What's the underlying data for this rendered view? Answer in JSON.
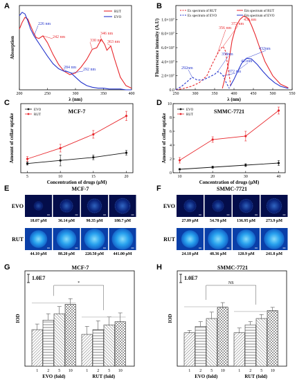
{
  "panels": {
    "A": {
      "letter": "A",
      "chart_data": {
        "type": "line",
        "xlabel": "λ (nm)",
        "ylabel": "Absorption",
        "xlim": [
          200,
          400
        ],
        "xticks": [
          200,
          250,
          300,
          350,
          400
        ],
        "ylim": [
          0,
          1
        ],
        "legend_position": "top-right",
        "series": [
          {
            "name": "RUT",
            "color": "#e8262b",
            "x": [
              200,
              205,
              210,
              215,
              220,
              225,
              230,
              235,
              242,
              250,
              260,
              270,
              280,
              290,
              300,
              310,
              320,
              330,
              338,
              346,
              352,
              356,
              363,
              370,
              380,
              390,
              400
            ],
            "y": [
              0.72,
              0.8,
              0.86,
              0.84,
              0.76,
              0.68,
              0.62,
              0.61,
              0.64,
              0.56,
              0.42,
              0.3,
              0.22,
              0.18,
              0.2,
              0.27,
              0.36,
              0.48,
              0.5,
              0.6,
              0.54,
              0.47,
              0.52,
              0.36,
              0.15,
              0.05,
              0.02
            ]
          },
          {
            "name": "EVO",
            "color": "#2233cc",
            "x": [
              200,
              205,
              210,
              215,
              220,
              226,
              232,
              240,
              250,
              260,
              270,
              280,
              284,
              288,
              292,
              300,
              310,
              320,
              330,
              340,
              350,
              360,
              370,
              380,
              390,
              400
            ],
            "y": [
              0.88,
              0.92,
              0.9,
              0.82,
              0.72,
              0.64,
              0.58,
              0.5,
              0.4,
              0.31,
              0.25,
              0.22,
              0.22,
              0.21,
              0.2,
              0.15,
              0.09,
              0.05,
              0.03,
              0.02,
              0.02,
              0.01,
              0.01,
              0.01,
              0.0,
              0.0
            ]
          }
        ],
        "annotations": [
          {
            "text": "226 nm",
            "color": "#2233cc"
          },
          {
            "text": "242 nm",
            "color": "#e8262b"
          },
          {
            "text": "284 nm",
            "color": "#2233cc"
          },
          {
            "text": "292 nm",
            "color": "#2233cc"
          },
          {
            "text": "330 nm",
            "color": "#e8262b"
          },
          {
            "text": "346 nm",
            "color": "#e8262b"
          },
          {
            "text": "363 nm",
            "color": "#e8262b"
          }
        ]
      }
    },
    "B": {
      "letter": "B",
      "chart_data": {
        "type": "line",
        "xlabel": "λ (nm)",
        "ylabel": "Fluorescence intensity (A.U)",
        "xlim": [
          250,
          550
        ],
        "xticks": [
          250,
          300,
          350,
          400,
          450,
          500,
          550
        ],
        "ylim": [
          0,
          1.2
        ],
        "ytick_labels": [
          "0.0",
          "2.0×10⁷",
          "4.0×10⁷",
          "6.0×10⁷",
          "8.0×10⁷",
          "1.0×10⁷"
        ],
        "legend_position": "top",
        "series": [
          {
            "name": "Ex spectrum of RUT",
            "color": "#e8262b",
            "style": "dashed",
            "x": [
              250,
              270,
              290,
              310,
              330,
              345,
              356,
              365,
              372,
              378,
              385,
              392
            ],
            "y": [
              0.0,
              0.02,
              0.05,
              0.1,
              0.2,
              0.38,
              0.5,
              0.58,
              0.62,
              0.55,
              0.3,
              0.05
            ]
          },
          {
            "name": "Ex spectrum of EVO",
            "color": "#2233cc",
            "style": "dashed",
            "x": [
              250,
              265,
              280,
              292,
              305,
              320,
              335,
              350,
              358,
              365,
              372,
              380,
              388
            ],
            "y": [
              0.0,
              0.05,
              0.12,
              0.18,
              0.14,
              0.14,
              0.18,
              0.22,
              0.26,
              0.24,
              0.2,
              0.1,
              0.02
            ]
          },
          {
            "name": "Em spectrum of RUT",
            "color": "#e8262b",
            "style": "solid",
            "x": [
              370,
              385,
              395,
              405,
              415,
              425,
              436,
              445,
              455,
              465,
              480,
              500,
              520,
              540
            ],
            "y": [
              0.02,
              0.35,
              0.7,
              0.9,
              1.0,
              1.05,
              1.02,
              0.92,
              0.78,
              0.62,
              0.4,
              0.2,
              0.08,
              0.03
            ]
          },
          {
            "name": "Em spectrum of EVO",
            "color": "#2233cc",
            "style": "solid",
            "x": [
              390,
              400,
              411,
              420,
              432,
              445,
              460,
              475,
              490,
              505,
              520,
              540
            ],
            "y": [
              0.05,
              0.15,
              0.28,
              0.38,
              0.45,
              0.44,
              0.36,
              0.26,
              0.17,
              0.1,
              0.05,
              0.02
            ]
          }
        ],
        "annotations": [
          {
            "text": "292nm",
            "color": "#2233cc"
          },
          {
            "text": "356 nm",
            "color": "#e8262b"
          },
          {
            "text": "372 nm",
            "color": "#e8262b"
          },
          {
            "text": "358nm",
            "color": "#2233cc"
          },
          {
            "text": "372 nm",
            "color": "#2233cc"
          },
          {
            "text": "411nm",
            "color": "#2233cc"
          },
          {
            "text": "432nm",
            "color": "#2233cc"
          },
          {
            "text": "436 nm",
            "color": "#e8262b"
          }
        ]
      }
    },
    "C": {
      "letter": "C",
      "chart_data": {
        "type": "line",
        "title": "MCF-7",
        "xlabel": "Concentration of drugs (μM)",
        "ylabel": "Amount of cellar uptake",
        "xlim": [
          4,
          21
        ],
        "xticks": [
          5,
          10,
          15,
          20
        ],
        "ylim": [
          0,
          4.5
        ],
        "legend_position": "top-left",
        "series": [
          {
            "name": "EVO",
            "color": "#111111",
            "x": [
              5,
              10,
              15,
              20
            ],
            "y": [
              0.6,
              0.8,
              1.0,
              1.3
            ],
            "err": [
              0.1,
              0.35,
              0.15,
              0.15
            ]
          },
          {
            "name": "RUT",
            "color": "#e8262b",
            "x": [
              5,
              10,
              15,
              20
            ],
            "y": [
              0.9,
              1.6,
              2.5,
              3.7
            ],
            "err": [
              0.15,
              0.25,
              0.25,
              0.3
            ]
          }
        ]
      }
    },
    "D": {
      "letter": "D",
      "chart_data": {
        "type": "line",
        "title": "SMMC-7721",
        "xlabel": "Concentration of drugs (μM)",
        "ylabel": "Amount of cellar uptake",
        "xlim": [
          8,
          42
        ],
        "xticks": [
          10,
          20,
          30,
          40
        ],
        "ylim": [
          0,
          10
        ],
        "yticks": [
          0,
          2,
          4,
          6,
          8,
          10
        ],
        "legend_position": "top-left",
        "series": [
          {
            "name": "EVO",
            "color": "#111111",
            "x": [
              10,
              20,
              30,
              40
            ],
            "y": [
              0.5,
              0.8,
              1.1,
              1.4
            ],
            "err": [
              0.1,
              0.15,
              0.2,
              0.35
            ]
          },
          {
            "name": "RUT",
            "color": "#e8262b",
            "x": [
              10,
              20,
              30,
              40
            ],
            "y": [
              1.8,
              4.8,
              5.3,
              9.0
            ],
            "err": [
              0.4,
              0.4,
              0.7,
              0.5
            ]
          }
        ]
      }
    },
    "E": {
      "letter": "E",
      "title": "MCF-7",
      "rows": [
        {
          "label": "EVO",
          "tone": "dim",
          "captions": [
            "18.07 μM",
            "36.14 μM",
            "90.35 μM",
            "180.7 μM"
          ],
          "levels": [
            0.18,
            0.45,
            0.55,
            0.62
          ]
        },
        {
          "label": "RUT",
          "tone": "bright",
          "captions": [
            "44.10 μM",
            "88.20 μM",
            "220.50 μM",
            "441.00 μM"
          ],
          "levels": [
            0.7,
            0.85,
            0.9,
            0.95
          ]
        }
      ]
    },
    "F": {
      "letter": "F",
      "title": "SMMC-7721",
      "rows": [
        {
          "label": "EVO",
          "tone": "dim",
          "captions": [
            "27.09 μM",
            "54.78 μM",
            "136.95 μM",
            "273.9 μM"
          ],
          "levels": [
            0.4,
            0.35,
            0.5,
            0.6
          ]
        },
        {
          "label": "RUT",
          "tone": "bright",
          "captions": [
            "24.18 μM",
            "48.36 μM",
            "120.9 μM",
            "241.8 μM"
          ],
          "levels": [
            0.7,
            0.9,
            0.8,
            0.88
          ]
        }
      ]
    },
    "G": {
      "letter": "G",
      "chart_data": {
        "type": "bar",
        "title": "MCF-7",
        "ylabel": "IOD",
        "scale_label": "1.0E7",
        "significance": "*",
        "ylim": [
          0,
          6
        ],
        "categories": [
          "1",
          "2",
          "5",
          "10",
          "1",
          "2",
          "5",
          "10"
        ],
        "group_labels": [
          "EVO (fold)",
          "RUT (fold)"
        ],
        "values": [
          2.3,
          2.9,
          3.3,
          3.9,
          2.0,
          2.3,
          2.6,
          2.8
        ],
        "errors": [
          0.35,
          0.4,
          0.45,
          0.35,
          0.5,
          0.55,
          0.5,
          0.55
        ]
      }
    },
    "H": {
      "letter": "H",
      "chart_data": {
        "type": "bar",
        "title": "SMMC-7721",
        "ylabel": "IOD",
        "scale_label": "1.0E7",
        "significance": "NS",
        "ylim": [
          0,
          6
        ],
        "categories": [
          "1",
          "2",
          "5",
          "10",
          "1",
          "2",
          "5",
          "10"
        ],
        "group_labels": [
          "EVO (fold)",
          "RUT (fold)"
        ],
        "values": [
          2.1,
          2.5,
          3.0,
          3.7,
          2.1,
          2.6,
          3.0,
          3.5
        ],
        "errors": [
          0.15,
          0.3,
          0.4,
          0.3,
          0.3,
          0.2,
          0.25,
          0.2
        ]
      }
    }
  }
}
